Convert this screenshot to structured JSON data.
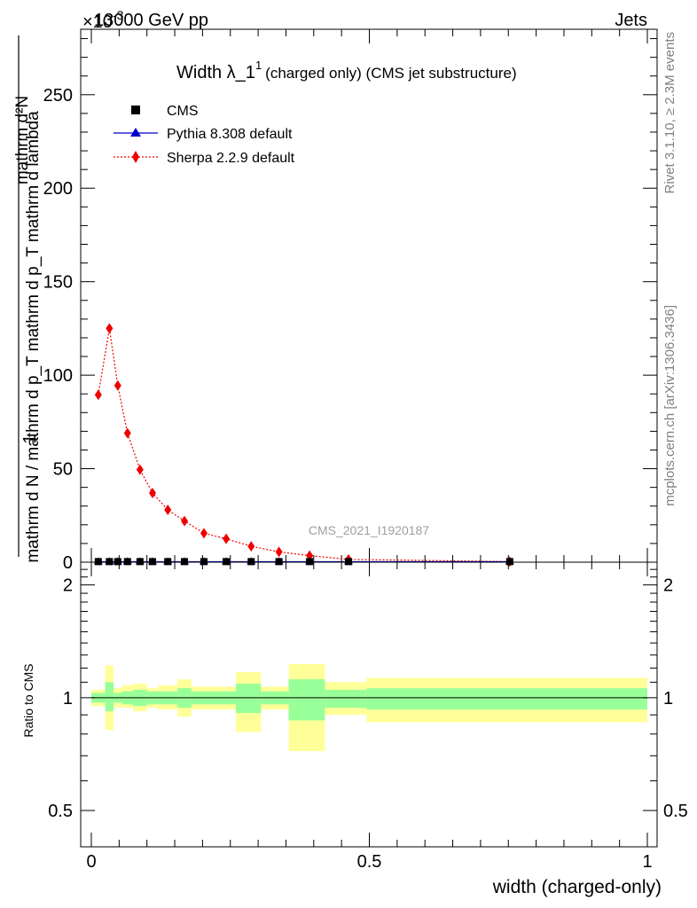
{
  "header": {
    "energy": "13000 GeV pp",
    "category": "Jets",
    "exponent_marker": "×10",
    "exponent_power": "-3"
  },
  "title": {
    "main": "Width λ_1",
    "superscript": "1",
    "sub": "(charged only) (CMS jet substructure)"
  },
  "watermark": "CMS_2021_I1920187",
  "side_labels": {
    "rivet": "Rivet 3.1.10, ≥ 2.3M events",
    "mcplots": "mcplots.cern.ch [arXiv:1306.3436]"
  },
  "ylabel_upper": {
    "numerator": "1",
    "denominator": "mathrm d N / mathrm d p_T mathrm d p_T mathrm d lambda",
    "second_line": "mathrm d²N"
  },
  "ylabel_ratio": "Ratio to CMS",
  "xlabel": "width (charged-only)",
  "legend": [
    {
      "label": "CMS",
      "marker": "square",
      "color": "#000000"
    },
    {
      "label": "Pythia 8.308 default",
      "marker": "triangle",
      "color": "#0000cc"
    },
    {
      "label": "Sherpa 2.2.9 default",
      "marker": "diamond",
      "color": "#ee0000"
    }
  ],
  "chart_data": [
    {
      "type": "scatter",
      "panel": "main",
      "xlim": [
        0,
        1
      ],
      "ylim": [
        0,
        285
      ],
      "yticks": [
        0,
        50,
        100,
        150,
        200,
        250
      ],
      "yticklabels": [
        "0",
        "50",
        "100",
        "150",
        "200",
        "250"
      ],
      "series": [
        {
          "name": "CMS",
          "x": [
            0.0125,
            0.0325,
            0.0475,
            0.065,
            0.0875,
            0.11,
            0.1375,
            0.1675,
            0.2025,
            0.2425,
            0.2875,
            0.3375,
            0.3925,
            0.4625,
            0.7525
          ],
          "y": [
            0.3,
            0.3,
            0.3,
            0.3,
            0.3,
            0.3,
            0.3,
            0.3,
            0.3,
            0.3,
            0.3,
            0.3,
            0.3,
            0.3,
            0.3
          ]
        },
        {
          "name": "Pythia 8.308 default",
          "x": [
            0.0125,
            0.0325,
            0.0475,
            0.065,
            0.0875,
            0.11,
            0.1375,
            0.1675,
            0.2025,
            0.2425,
            0.2875,
            0.3375,
            0.3925,
            0.4625,
            0.7525
          ],
          "y": [
            0.3,
            0.3,
            0.3,
            0.3,
            0.3,
            0.3,
            0.3,
            0.3,
            0.3,
            0.3,
            0.3,
            0.3,
            0.3,
            0.3,
            0.3
          ]
        },
        {
          "name": "Sherpa 2.2.9 default",
          "x": [
            0.0125,
            0.0325,
            0.0475,
            0.065,
            0.0875,
            0.11,
            0.1375,
            0.1675,
            0.2025,
            0.2425,
            0.2875,
            0.3375,
            0.3925,
            0.4625,
            0.7525
          ],
          "y": [
            89.5,
            125,
            94.5,
            69,
            49.5,
            37,
            28,
            22,
            15.5,
            12.5,
            8.5,
            5.5,
            3.5,
            1.5,
            0.3
          ]
        }
      ]
    },
    {
      "type": "area",
      "panel": "ratio",
      "xlim": [
        0,
        1
      ],
      "ylim": [
        0.4,
        2.3
      ],
      "yticks": [
        0.5,
        1,
        2
      ],
      "yticklabels": [
        "0.5",
        "1",
        "2"
      ],
      "xticks": [
        0,
        0.5,
        1
      ],
      "xticklabels": [
        "0",
        "0.5",
        "1"
      ],
      "bins": [
        {
          "lo": 0.0,
          "hi": 0.025,
          "inner": [
            0.97,
            1.03
          ],
          "outer": [
            0.95,
            1.05
          ]
        },
        {
          "lo": 0.025,
          "hi": 0.04,
          "inner": [
            0.92,
            1.1
          ],
          "outer": [
            0.82,
            1.22
          ]
        },
        {
          "lo": 0.04,
          "hi": 0.055,
          "inner": [
            0.97,
            1.03
          ],
          "outer": [
            0.94,
            1.06
          ]
        },
        {
          "lo": 0.055,
          "hi": 0.075,
          "inner": [
            0.96,
            1.04
          ],
          "outer": [
            0.94,
            1.08
          ]
        },
        {
          "lo": 0.075,
          "hi": 0.1,
          "inner": [
            0.95,
            1.05
          ],
          "outer": [
            0.92,
            1.09
          ]
        },
        {
          "lo": 0.1,
          "hi": 0.12,
          "inner": [
            0.96,
            1.04
          ],
          "outer": [
            0.94,
            1.06
          ]
        },
        {
          "lo": 0.12,
          "hi": 0.155,
          "inner": [
            0.96,
            1.04
          ],
          "outer": [
            0.93,
            1.08
          ]
        },
        {
          "lo": 0.155,
          "hi": 0.18,
          "inner": [
            0.94,
            1.06
          ],
          "outer": [
            0.89,
            1.12
          ]
        },
        {
          "lo": 0.18,
          "hi": 0.225,
          "inner": [
            0.96,
            1.04
          ],
          "outer": [
            0.93,
            1.07
          ]
        },
        {
          "lo": 0.225,
          "hi": 0.26,
          "inner": [
            0.96,
            1.04
          ],
          "outer": [
            0.93,
            1.07
          ]
        },
        {
          "lo": 0.26,
          "hi": 0.305,
          "inner": [
            0.91,
            1.09
          ],
          "outer": [
            0.81,
            1.17
          ]
        },
        {
          "lo": 0.305,
          "hi": 0.355,
          "inner": [
            0.96,
            1.04
          ],
          "outer": [
            0.93,
            1.07
          ]
        },
        {
          "lo": 0.355,
          "hi": 0.42,
          "inner": [
            0.87,
            1.12
          ],
          "outer": [
            0.72,
            1.23
          ]
        },
        {
          "lo": 0.42,
          "hi": 0.495,
          "inner": [
            0.94,
            1.05
          ],
          "outer": [
            0.9,
            1.1
          ]
        },
        {
          "lo": 0.495,
          "hi": 1.0,
          "inner": [
            0.93,
            1.06
          ],
          "outer": [
            0.86,
            1.13
          ]
        }
      ],
      "reference_line": 1
    }
  ]
}
